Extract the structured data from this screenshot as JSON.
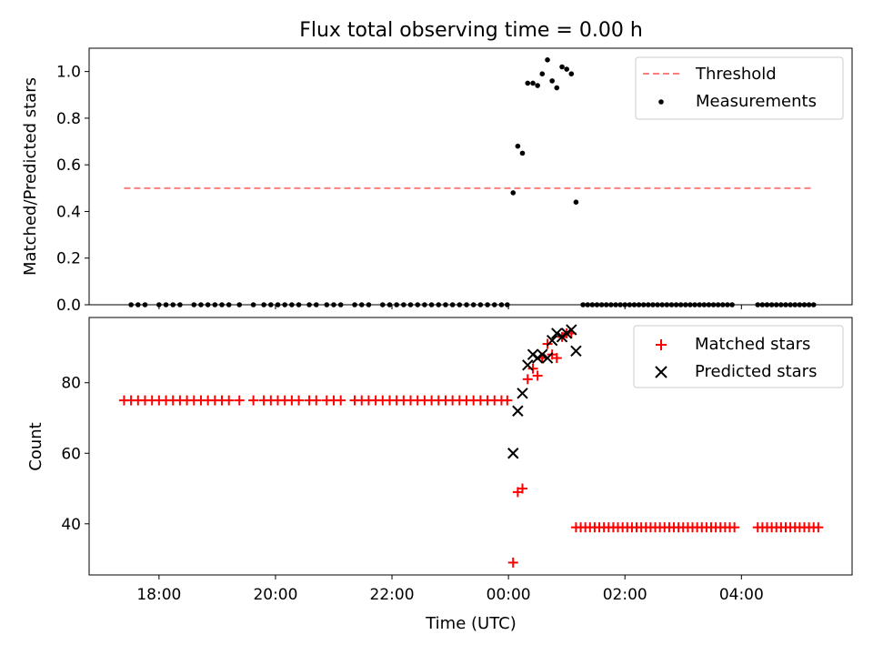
{
  "figure": {
    "title": "Flux total observing time = 0.00 h",
    "xlabel": "Time (UTC)"
  },
  "colors": {
    "threshold": "#ff7f7f",
    "measurement": "#000000",
    "matched": "#ff0000",
    "predicted": "#000000",
    "axes": "#000000"
  },
  "chart_data": [
    {
      "type": "scatter",
      "title": "Flux total observing time = 0.00 h",
      "xlabel": "",
      "ylabel": "Matched/Predicted stars",
      "x_unit": "hours since 00:00 UTC",
      "xlim": [
        -7.2,
        5.9
      ],
      "ylim": [
        0.0,
        1.1
      ],
      "xticks": [
        -6,
        -4,
        -2,
        0,
        2,
        4
      ],
      "yticks": [
        0.0,
        0.2,
        0.4,
        0.6,
        0.8,
        1.0
      ],
      "ytick_labels": [
        "0.0",
        "0.2",
        "0.4",
        "0.6",
        "0.8",
        "1.0"
      ],
      "legend_position": "top-right",
      "threshold": {
        "name": "Threshold",
        "value": 0.5,
        "x_range": [
          -6.6,
          5.2
        ]
      },
      "series": [
        {
          "name": "Measurements",
          "points": [
            [
              -6.48,
              0
            ],
            [
              -6.36,
              0
            ],
            [
              -6.24,
              0
            ],
            [
              -6.0,
              0
            ],
            [
              -5.88,
              0
            ],
            [
              -5.76,
              0
            ],
            [
              -5.64,
              0
            ],
            [
              -5.4,
              0
            ],
            [
              -5.28,
              0
            ],
            [
              -5.16,
              0
            ],
            [
              -5.04,
              0
            ],
            [
              -4.92,
              0
            ],
            [
              -4.8,
              0
            ],
            [
              -4.62,
              0
            ],
            [
              -4.38,
              0
            ],
            [
              -4.2,
              0
            ],
            [
              -4.08,
              0
            ],
            [
              -3.96,
              0
            ],
            [
              -3.84,
              0
            ],
            [
              -3.72,
              0
            ],
            [
              -3.6,
              0
            ],
            [
              -3.42,
              0
            ],
            [
              -3.3,
              0
            ],
            [
              -3.12,
              0
            ],
            [
              -3.0,
              0
            ],
            [
              -2.88,
              0
            ],
            [
              -2.64,
              0
            ],
            [
              -2.52,
              0
            ],
            [
              -2.4,
              0
            ],
            [
              -2.16,
              0
            ],
            [
              -2.04,
              0
            ],
            [
              -1.92,
              0
            ],
            [
              -1.8,
              0
            ],
            [
              -1.68,
              0
            ],
            [
              -1.56,
              0
            ],
            [
              -1.44,
              0
            ],
            [
              -1.32,
              0
            ],
            [
              -1.2,
              0
            ],
            [
              -1.08,
              0
            ],
            [
              -0.96,
              0
            ],
            [
              -0.84,
              0
            ],
            [
              -0.72,
              0
            ],
            [
              -0.6,
              0
            ],
            [
              -0.48,
              0
            ],
            [
              -0.36,
              0
            ],
            [
              -0.24,
              0
            ],
            [
              -0.12,
              0
            ],
            [
              -0.02,
              0
            ],
            [
              0.08,
              0.48
            ],
            [
              0.16,
              0.68
            ],
            [
              0.24,
              0.65
            ],
            [
              0.33,
              0.95
            ],
            [
              0.42,
              0.95
            ],
            [
              0.5,
              0.94
            ],
            [
              0.58,
              0.99
            ],
            [
              0.67,
              1.05
            ],
            [
              0.75,
              0.96
            ],
            [
              0.83,
              0.93
            ],
            [
              0.92,
              1.02
            ],
            [
              1.0,
              1.01
            ],
            [
              1.08,
              0.99
            ],
            [
              1.16,
              0.44
            ],
            [
              1.28,
              0
            ],
            [
              1.36,
              0
            ],
            [
              1.44,
              0
            ],
            [
              1.52,
              0
            ],
            [
              1.6,
              0
            ],
            [
              1.68,
              0
            ],
            [
              1.76,
              0
            ],
            [
              1.84,
              0
            ],
            [
              1.92,
              0
            ],
            [
              2.0,
              0
            ],
            [
              2.08,
              0
            ],
            [
              2.16,
              0
            ],
            [
              2.24,
              0
            ],
            [
              2.32,
              0
            ],
            [
              2.4,
              0
            ],
            [
              2.48,
              0
            ],
            [
              2.56,
              0
            ],
            [
              2.64,
              0
            ],
            [
              2.72,
              0
            ],
            [
              2.8,
              0
            ],
            [
              2.88,
              0
            ],
            [
              2.96,
              0
            ],
            [
              3.04,
              0
            ],
            [
              3.12,
              0
            ],
            [
              3.2,
              0
            ],
            [
              3.28,
              0
            ],
            [
              3.36,
              0
            ],
            [
              3.44,
              0
            ],
            [
              3.52,
              0
            ],
            [
              3.6,
              0
            ],
            [
              3.68,
              0
            ],
            [
              3.76,
              0
            ],
            [
              3.84,
              0
            ],
            [
              4.28,
              0
            ],
            [
              4.36,
              0
            ],
            [
              4.44,
              0
            ],
            [
              4.52,
              0
            ],
            [
              4.6,
              0
            ],
            [
              4.68,
              0
            ],
            [
              4.76,
              0
            ],
            [
              4.84,
              0
            ],
            [
              4.92,
              0
            ],
            [
              5.0,
              0
            ],
            [
              5.08,
              0
            ],
            [
              5.16,
              0
            ],
            [
              5.24,
              0
            ]
          ]
        }
      ]
    },
    {
      "type": "scatter",
      "title": "",
      "xlabel": "Time (UTC)",
      "ylabel": "Count",
      "x_unit": "hours since 00:00 UTC",
      "xlim": [
        -7.2,
        5.9
      ],
      "ylim": [
        25.5,
        98.5
      ],
      "xticks": [
        -6,
        -4,
        -2,
        0,
        2,
        4
      ],
      "xtick_labels": [
        "18:00",
        "20:00",
        "22:00",
        "00:00",
        "02:00",
        "04:00"
      ],
      "yticks": [
        40,
        60,
        80
      ],
      "ytick_labels": [
        "40",
        "60",
        "80"
      ],
      "legend_position": "top-right",
      "series": [
        {
          "name": "Matched stars",
          "marker": "plus",
          "points": [
            [
              -6.6,
              75
            ],
            [
              -6.48,
              75
            ],
            [
              -6.36,
              75
            ],
            [
              -6.24,
              75
            ],
            [
              -6.12,
              75
            ],
            [
              -6.0,
              75
            ],
            [
              -5.88,
              75
            ],
            [
              -5.76,
              75
            ],
            [
              -5.64,
              75
            ],
            [
              -5.52,
              75
            ],
            [
              -5.4,
              75
            ],
            [
              -5.28,
              75
            ],
            [
              -5.16,
              75
            ],
            [
              -5.04,
              75
            ],
            [
              -4.92,
              75
            ],
            [
              -4.8,
              75
            ],
            [
              -4.62,
              75
            ],
            [
              -4.38,
              75
            ],
            [
              -4.2,
              75
            ],
            [
              -4.08,
              75
            ],
            [
              -3.96,
              75
            ],
            [
              -3.84,
              75
            ],
            [
              -3.72,
              75
            ],
            [
              -3.6,
              75
            ],
            [
              -3.42,
              75
            ],
            [
              -3.3,
              75
            ],
            [
              -3.12,
              75
            ],
            [
              -3.0,
              75
            ],
            [
              -2.88,
              75
            ],
            [
              -2.64,
              75
            ],
            [
              -2.52,
              75
            ],
            [
              -2.4,
              75
            ],
            [
              -2.28,
              75
            ],
            [
              -2.16,
              75
            ],
            [
              -2.04,
              75
            ],
            [
              -1.92,
              75
            ],
            [
              -1.8,
              75
            ],
            [
              -1.68,
              75
            ],
            [
              -1.56,
              75
            ],
            [
              -1.44,
              75
            ],
            [
              -1.32,
              75
            ],
            [
              -1.2,
              75
            ],
            [
              -1.08,
              75
            ],
            [
              -0.96,
              75
            ],
            [
              -0.84,
              75
            ],
            [
              -0.72,
              75
            ],
            [
              -0.6,
              75
            ],
            [
              -0.48,
              75
            ],
            [
              -0.36,
              75
            ],
            [
              -0.24,
              75
            ],
            [
              -0.12,
              75
            ],
            [
              -0.02,
              75
            ],
            [
              0.08,
              29
            ],
            [
              0.16,
              49
            ],
            [
              0.24,
              50
            ],
            [
              0.33,
              81
            ],
            [
              0.42,
              84
            ],
            [
              0.5,
              82
            ],
            [
              0.58,
              87
            ],
            [
              0.67,
              91
            ],
            [
              0.75,
              88
            ],
            [
              0.83,
              87
            ],
            [
              0.92,
              93
            ],
            [
              1.0,
              94
            ],
            [
              1.08,
              94
            ],
            [
              1.16,
              39
            ],
            [
              1.24,
              39
            ],
            [
              1.32,
              39
            ],
            [
              1.4,
              39
            ],
            [
              1.48,
              39
            ],
            [
              1.56,
              39
            ],
            [
              1.64,
              39
            ],
            [
              1.72,
              39
            ],
            [
              1.8,
              39
            ],
            [
              1.88,
              39
            ],
            [
              1.96,
              39
            ],
            [
              2.04,
              39
            ],
            [
              2.12,
              39
            ],
            [
              2.2,
              39
            ],
            [
              2.28,
              39
            ],
            [
              2.36,
              39
            ],
            [
              2.44,
              39
            ],
            [
              2.52,
              39
            ],
            [
              2.6,
              39
            ],
            [
              2.68,
              39
            ],
            [
              2.76,
              39
            ],
            [
              2.84,
              39
            ],
            [
              2.92,
              39
            ],
            [
              3.0,
              39
            ],
            [
              3.08,
              39
            ],
            [
              3.16,
              39
            ],
            [
              3.24,
              39
            ],
            [
              3.32,
              39
            ],
            [
              3.4,
              39
            ],
            [
              3.48,
              39
            ],
            [
              3.56,
              39
            ],
            [
              3.64,
              39
            ],
            [
              3.72,
              39
            ],
            [
              3.8,
              39
            ],
            [
              3.88,
              39
            ],
            [
              4.28,
              39
            ],
            [
              4.36,
              39
            ],
            [
              4.44,
              39
            ],
            [
              4.52,
              39
            ],
            [
              4.6,
              39
            ],
            [
              4.68,
              39
            ],
            [
              4.76,
              39
            ],
            [
              4.84,
              39
            ],
            [
              4.92,
              39
            ],
            [
              5.0,
              39
            ],
            [
              5.08,
              39
            ],
            [
              5.16,
              39
            ],
            [
              5.24,
              39
            ],
            [
              5.32,
              39
            ]
          ]
        },
        {
          "name": "Predicted stars",
          "marker": "x",
          "points": [
            [
              0.08,
              60
            ],
            [
              0.16,
              72
            ],
            [
              0.24,
              77
            ],
            [
              0.33,
              85
            ],
            [
              0.42,
              88
            ],
            [
              0.5,
              87
            ],
            [
              0.58,
              88
            ],
            [
              0.67,
              87
            ],
            [
              0.75,
              92
            ],
            [
              0.83,
              94
            ],
            [
              0.92,
              93
            ],
            [
              1.0,
              94
            ],
            [
              1.08,
              95
            ],
            [
              1.16,
              89
            ]
          ]
        }
      ]
    }
  ]
}
